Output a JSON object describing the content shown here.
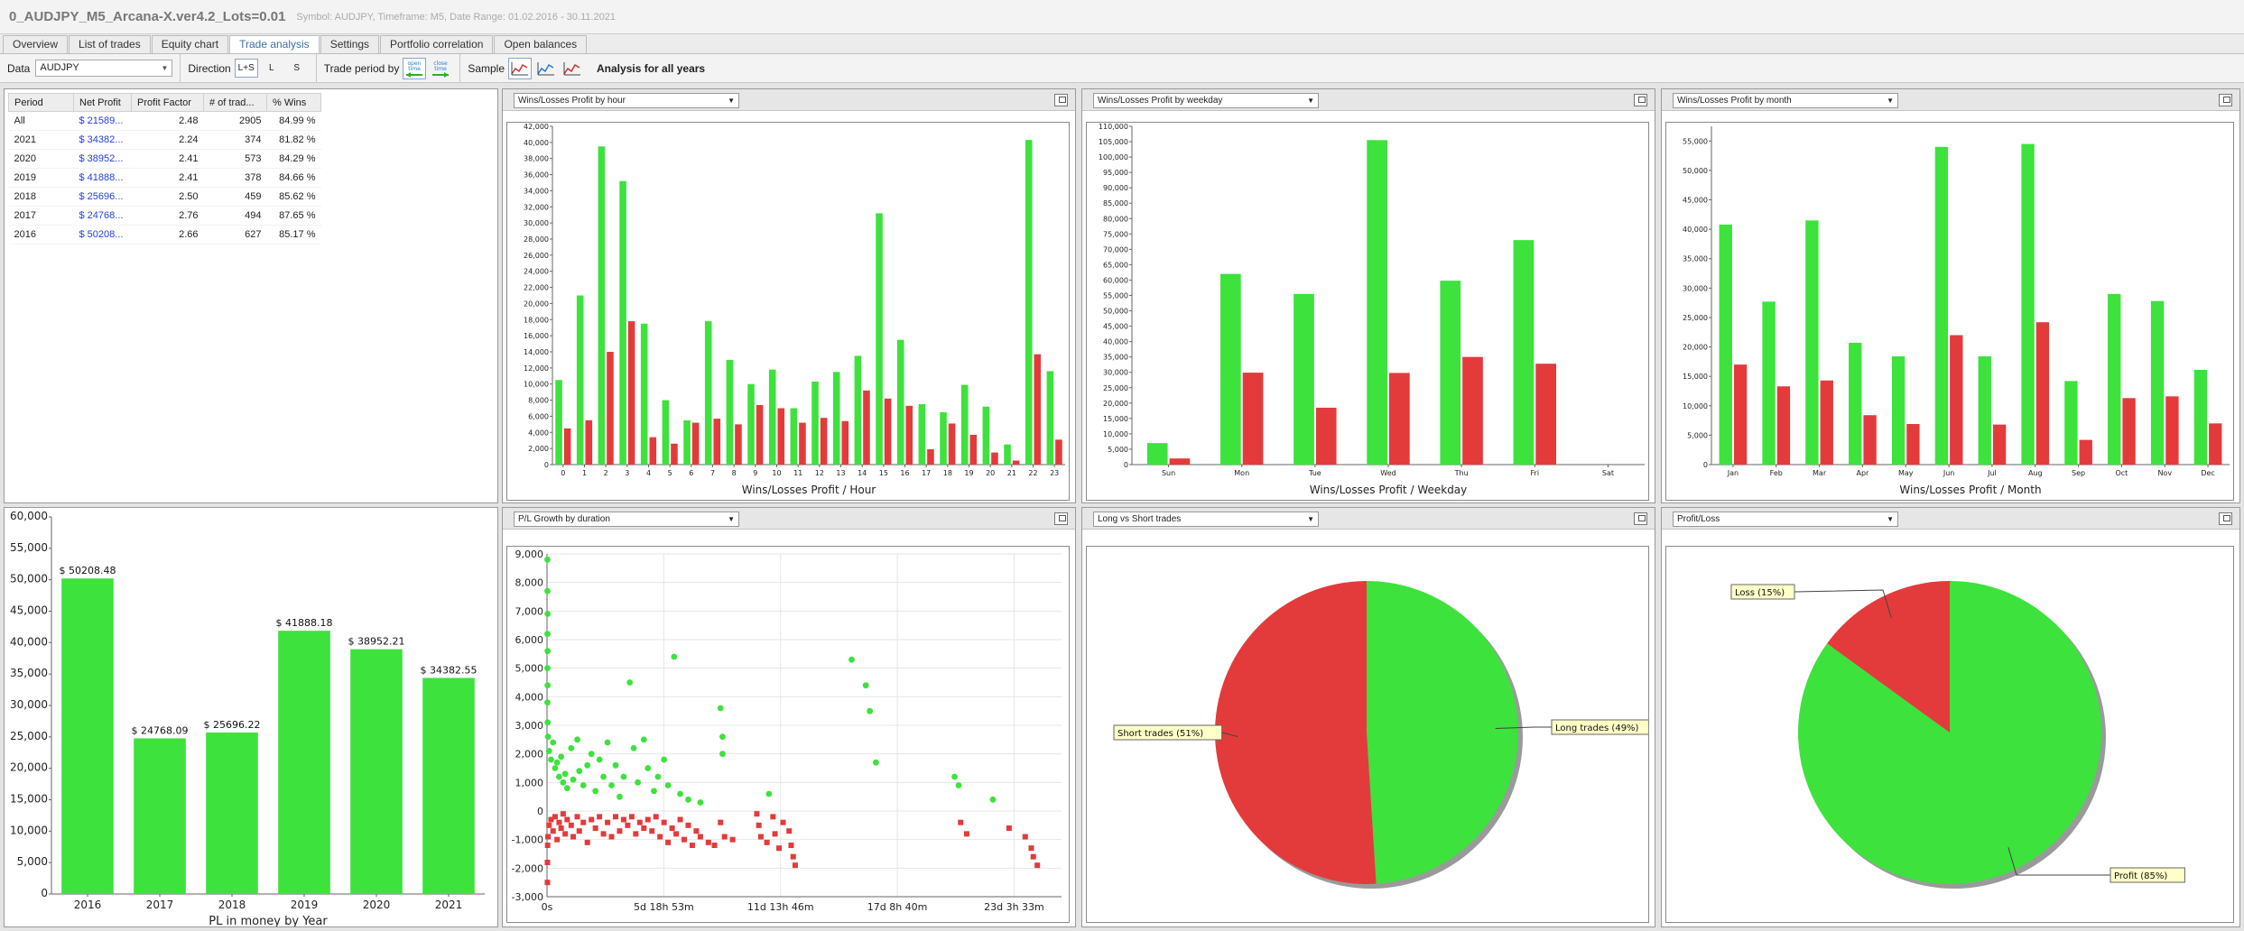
{
  "window": {
    "title": "0_AUDJPY_M5_Arcana-X.ver4.2_Lots=0.01",
    "subtitle": "Symbol: AUDJPY, Timeframe: M5, Date Range: 01.02.2016 - 30.11.2021"
  },
  "tabs": [
    "Overview",
    "List of trades",
    "Equity chart",
    "Trade analysis",
    "Settings",
    "Portfolio correlation",
    "Open balances"
  ],
  "active_tab": "Trade analysis",
  "toolbar": {
    "data_label": "Data",
    "data_value": "AUDJPY",
    "direction_label": "Direction",
    "direction_options": [
      "L+S",
      "L",
      "S"
    ],
    "direction_selected": "L+S",
    "trade_period_label": "Trade period by",
    "trade_period_icons": [
      "open time",
      "close time"
    ],
    "sample_label": "Sample",
    "analysis_title": "Analysis for all years"
  },
  "period_table": {
    "headers": [
      "Period",
      "Net Profit",
      "Profit Factor",
      "# of trad...",
      "% Wins"
    ],
    "rows": [
      [
        "All",
        "$ 21589...",
        "2.48",
        "2905",
        "84.99 %"
      ],
      [
        "2021",
        "$ 34382...",
        "2.24",
        "374",
        "81.82 %"
      ],
      [
        "2020",
        "$ 38952...",
        "2.41",
        "573",
        "84.29 %"
      ],
      [
        "2019",
        "$ 41888...",
        "2.41",
        "378",
        "84.66 %"
      ],
      [
        "2018",
        "$ 25696...",
        "2.50",
        "459",
        "85.62 %"
      ],
      [
        "2017",
        "$ 24768...",
        "2.76",
        "494",
        "87.65 %"
      ],
      [
        "2016",
        "$ 50208...",
        "2.66",
        "627",
        "85.17 %"
      ]
    ]
  },
  "panels": {
    "hour_select": "Wins/Losses Profit by hour",
    "weekday_select": "Wins/Losses Profit by weekday",
    "month_select": "Wins/Losses Profit by month",
    "duration_select": "P/L Growth by duration",
    "longshort_select": "Long vs Short trades",
    "profitloss_select": "Profit/Loss"
  },
  "colors": {
    "win": "#3de23d",
    "loss": "#e33b3b",
    "link": "#2440d8"
  },
  "chart_data": [
    {
      "id": "hour",
      "type": "bar",
      "xlabel": "Wins/Losses Profit / Hour",
      "ylim": [
        0,
        42000
      ],
      "yticks": [
        0,
        2000,
        4000,
        6000,
        8000,
        10000,
        12000,
        14000,
        16000,
        18000,
        20000,
        22000,
        24000,
        26000,
        28000,
        30000,
        32000,
        34000,
        36000,
        38000,
        40000,
        42000
      ],
      "categories": [
        "0",
        "1",
        "2",
        "3",
        "4",
        "5",
        "6",
        "7",
        "8",
        "9",
        "10",
        "11",
        "12",
        "13",
        "14",
        "15",
        "16",
        "17",
        "18",
        "19",
        "20",
        "21",
        "22",
        "23"
      ],
      "series": [
        {
          "values": [
            10500,
            21000,
            39500,
            35200,
            17500,
            8000,
            5500,
            17800,
            13000,
            10000,
            11800,
            7000,
            10300,
            11500,
            13500,
            31200,
            15500,
            7500,
            6500,
            9900,
            7200,
            2500,
            40300,
            11600
          ]
        },
        {
          "values": [
            4500,
            5500,
            14000,
            17800,
            3400,
            2600,
            5200,
            5700,
            5000,
            7400,
            7000,
            5200,
            5800,
            5400,
            9200,
            8200,
            7300,
            1900,
            5100,
            3700,
            1500,
            500,
            13700,
            3100
          ]
        }
      ]
    },
    {
      "id": "weekday",
      "type": "bar",
      "xlabel": "Wins/Losses Profit / Weekday",
      "ylim": [
        0,
        110000
      ],
      "yticks": [
        0,
        5000,
        10000,
        15000,
        20000,
        25000,
        30000,
        35000,
        40000,
        45000,
        50000,
        55000,
        60000,
        65000,
        70000,
        75000,
        80000,
        85000,
        90000,
        95000,
        100000,
        105000,
        110000
      ],
      "categories": [
        "Sun",
        "Mon",
        "Tue",
        "Wed",
        "Thu",
        "Fri",
        "Sat"
      ],
      "series": [
        {
          "values": [
            7000,
            62000,
            55500,
            105500,
            59800,
            73000,
            0
          ]
        },
        {
          "values": [
            2000,
            29900,
            18500,
            29800,
            35000,
            32800,
            0
          ]
        }
      ]
    },
    {
      "id": "month",
      "type": "bar",
      "xlabel": "Wins/Losses Profit / Month",
      "ylim": [
        0,
        57500
      ],
      "yticks": [
        0,
        5000,
        10000,
        15000,
        20000,
        25000,
        30000,
        35000,
        40000,
        45000,
        50000,
        55000
      ],
      "categories": [
        "Jan",
        "Feb",
        "Mar",
        "Apr",
        "May",
        "Jun",
        "Jul",
        "Aug",
        "Sep",
        "Oct",
        "Nov",
        "Dec"
      ],
      "series": [
        {
          "values": [
            40800,
            27700,
            41500,
            20700,
            18400,
            54000,
            18400,
            54500,
            14200,
            29000,
            27800,
            16100
          ]
        },
        {
          "values": [
            17000,
            13300,
            14300,
            8400,
            6900,
            22000,
            6800,
            24200,
            4200,
            11300,
            11600,
            7000
          ]
        }
      ]
    },
    {
      "id": "year",
      "type": "bar",
      "xlabel": "PL in money by Year",
      "ylim": [
        0,
        60000
      ],
      "yticks": [
        0,
        5000,
        10000,
        15000,
        20000,
        25000,
        30000,
        35000,
        40000,
        45000,
        50000,
        55000,
        60000
      ],
      "categories": [
        "2016",
        "2017",
        "2018",
        "2019",
        "2020",
        "2021"
      ],
      "values": [
        50208.48,
        24768.09,
        25696.22,
        41888.18,
        38952.21,
        34382.55
      ],
      "labels": [
        "$ 50208.48",
        "$ 24768.09",
        "$ 25696.22",
        "$ 41888.18",
        "$ 38952.21",
        "$ 34382.55"
      ]
    },
    {
      "id": "duration",
      "type": "scatter",
      "xticks": [
        "0s",
        "5d 18h 53m",
        "11d 13h 46m",
        "17d 8h 40m",
        "23d 3h 33m"
      ],
      "xlim_days": [
        0,
        25.5
      ],
      "ylim": [
        -3000,
        9000
      ],
      "yticks": [
        -3000,
        -2000,
        -1000,
        0,
        1000,
        2000,
        3000,
        4000,
        5000,
        6000,
        7000,
        8000,
        9000
      ],
      "wins": [
        [
          0.02,
          8800
        ],
        [
          0.02,
          7700
        ],
        [
          0.03,
          6900
        ],
        [
          0.02,
          6200
        ],
        [
          0.03,
          5600
        ],
        [
          0.02,
          5000
        ],
        [
          0.03,
          4400
        ],
        [
          0.02,
          3800
        ],
        [
          0.03,
          3100
        ],
        [
          0.05,
          2600
        ],
        [
          0.1,
          2100
        ],
        [
          0.2,
          1800
        ],
        [
          0.3,
          2400
        ],
        [
          0.4,
          1500
        ],
        [
          0.5,
          1700
        ],
        [
          0.6,
          1200
        ],
        [
          0.7,
          1900
        ],
        [
          0.8,
          1000
        ],
        [
          0.9,
          1300
        ],
        [
          1.0,
          800
        ],
        [
          1.2,
          2200
        ],
        [
          1.3,
          1100
        ],
        [
          1.5,
          2500
        ],
        [
          1.6,
          1400
        ],
        [
          1.8,
          900
        ],
        [
          2.0,
          1600
        ],
        [
          2.2,
          2000
        ],
        [
          2.4,
          700
        ],
        [
          2.6,
          1800
        ],
        [
          2.8,
          1200
        ],
        [
          3.0,
          2400
        ],
        [
          3.2,
          900
        ],
        [
          3.4,
          1600
        ],
        [
          3.6,
          500
        ],
        [
          3.8,
          1200
        ],
        [
          4.1,
          4500
        ],
        [
          4.3,
          2200
        ],
        [
          4.5,
          1000
        ],
        [
          4.8,
          2500
        ],
        [
          5.0,
          1500
        ],
        [
          5.3,
          700
        ],
        [
          5.5,
          1200
        ],
        [
          5.8,
          1800
        ],
        [
          6.0,
          900
        ],
        [
          6.3,
          5400
        ],
        [
          6.6,
          600
        ],
        [
          7.0,
          400
        ],
        [
          7.6,
          300
        ],
        [
          8.6,
          3600
        ],
        [
          8.7,
          2600
        ],
        [
          8.7,
          2000
        ],
        [
          11.0,
          600
        ],
        [
          15.1,
          5300
        ],
        [
          15.8,
          4400
        ],
        [
          16.0,
          3500
        ],
        [
          16.3,
          1700
        ],
        [
          20.2,
          1200
        ],
        [
          20.4,
          900
        ],
        [
          22.1,
          400
        ]
      ],
      "losses": [
        [
          0.02,
          -2500
        ],
        [
          0.02,
          -1800
        ],
        [
          0.03,
          -1200
        ],
        [
          0.05,
          -900
        ],
        [
          0.1,
          -500
        ],
        [
          0.2,
          -300
        ],
        [
          0.3,
          -700
        ],
        [
          0.4,
          -200
        ],
        [
          0.5,
          -1000
        ],
        [
          0.6,
          -400
        ],
        [
          0.7,
          -600
        ],
        [
          0.8,
          -100
        ],
        [
          0.9,
          -800
        ],
        [
          1.0,
          -300
        ],
        [
          1.2,
          -500
        ],
        [
          1.3,
          -900
        ],
        [
          1.5,
          -200
        ],
        [
          1.6,
          -700
        ],
        [
          1.8,
          -400
        ],
        [
          2.0,
          -1100
        ],
        [
          2.2,
          -300
        ],
        [
          2.4,
          -600
        ],
        [
          2.6,
          -200
        ],
        [
          2.8,
          -800
        ],
        [
          3.0,
          -400
        ],
        [
          3.2,
          -900
        ],
        [
          3.4,
          -200
        ],
        [
          3.6,
          -700
        ],
        [
          3.8,
          -300
        ],
        [
          4.0,
          -500
        ],
        [
          4.2,
          -200
        ],
        [
          4.4,
          -800
        ],
        [
          4.6,
          -400
        ],
        [
          4.8,
          -600
        ],
        [
          5.0,
          -300
        ],
        [
          5.2,
          -700
        ],
        [
          5.4,
          -200
        ],
        [
          5.6,
          -900
        ],
        [
          5.8,
          -400
        ],
        [
          6.0,
          -1100
        ],
        [
          6.2,
          -600
        ],
        [
          6.4,
          -800
        ],
        [
          6.6,
          -300
        ],
        [
          6.8,
          -1000
        ],
        [
          7.0,
          -500
        ],
        [
          7.2,
          -1200
        ],
        [
          7.4,
          -700
        ],
        [
          7.6,
          -900
        ],
        [
          8.0,
          -1100
        ],
        [
          8.3,
          -1200
        ],
        [
          8.6,
          -400
        ],
        [
          8.8,
          -900
        ],
        [
          9.2,
          -1000
        ],
        [
          10.4,
          -100
        ],
        [
          10.5,
          -500
        ],
        [
          10.6,
          -900
        ],
        [
          10.9,
          -1100
        ],
        [
          11.2,
          -200
        ],
        [
          11.3,
          -800
        ],
        [
          11.5,
          -1300
        ],
        [
          11.7,
          -400
        ],
        [
          12.0,
          -700
        ],
        [
          12.1,
          -1200
        ],
        [
          12.2,
          -1600
        ],
        [
          12.3,
          -1900
        ],
        [
          20.5,
          -400
        ],
        [
          20.8,
          -800
        ],
        [
          22.9,
          -600
        ],
        [
          23.7,
          -900
        ],
        [
          24.0,
          -1300
        ],
        [
          24.1,
          -1600
        ],
        [
          24.3,
          -1900
        ]
      ]
    },
    {
      "id": "longshort",
      "type": "pie",
      "slices": [
        {
          "label": "Long trades (49%)",
          "value": 49
        },
        {
          "label": "Short trades (51%)",
          "value": 51
        }
      ]
    },
    {
      "id": "profitloss",
      "type": "pie",
      "slices": [
        {
          "label": "Profit (85%)",
          "value": 85
        },
        {
          "label": "Loss (15%)",
          "value": 15
        }
      ]
    }
  ]
}
